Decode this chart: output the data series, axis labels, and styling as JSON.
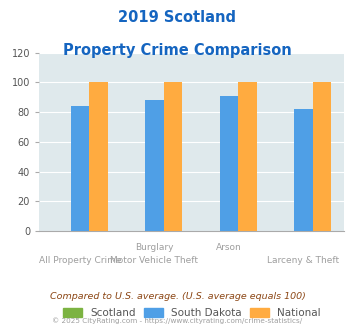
{
  "title_line1": "2019 Scotland",
  "title_line2": "Property Crime Comparison",
  "title_color": "#1565C0",
  "x_labels_row1": [
    "",
    "Burglary",
    "Arson",
    ""
  ],
  "x_labels_row2": [
    "All Property Crime",
    "Motor Vehicle Theft",
    "",
    "Larceny & Theft"
  ],
  "groups": 4,
  "scotland_values": [
    0,
    0,
    0,
    0
  ],
  "south_dakota_values": [
    84,
    88,
    91,
    82
  ],
  "national_values": [
    100,
    100,
    100,
    100
  ],
  "scotland_color": "#7CB342",
  "south_dakota_color": "#4F9FE6",
  "national_color": "#FFAB40",
  "ylim": [
    0,
    120
  ],
  "yticks": [
    0,
    20,
    40,
    60,
    80,
    100,
    120
  ],
  "background_color": "#DFE9EC",
  "grid_color": "#FFFFFF",
  "footnote1": "Compared to U.S. average. (U.S. average equals 100)",
  "footnote2": "© 2025 CityRating.com - https://www.cityrating.com/crime-statistics/",
  "footnote1_color": "#8B4513",
  "footnote2_color": "#9E9E9E",
  "legend_labels": [
    "Scotland",
    "South Dakota",
    "National"
  ],
  "x_label_color": "#9E9E9E",
  "bar_width": 0.25
}
